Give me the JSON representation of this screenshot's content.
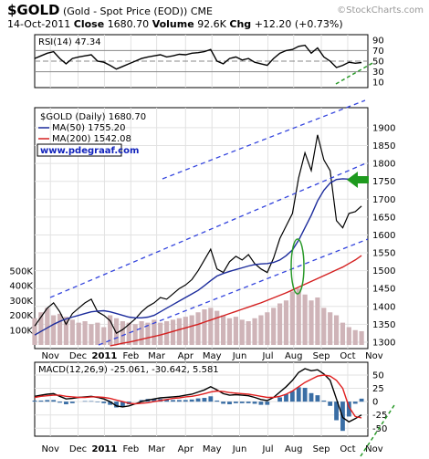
{
  "header": {
    "symbol": "$GOLD",
    "name": "(Gold - Spot Price (EOD))",
    "exchange": "CME",
    "watermark": "©StockCharts.com",
    "date": "14-Oct-2011",
    "close_label": "Close",
    "close": "1680.70",
    "volume_label": "Volume",
    "volume": "92.6K",
    "chg_label": "Chg",
    "chg": "+12.20 (+0.73%)"
  },
  "chart_data": [
    {
      "type": "line",
      "title": "RSI(14) 47.34",
      "xlim": [
        0,
        53
      ],
      "ylim": [
        0,
        100
      ],
      "yticks": [
        10,
        30,
        50,
        70,
        90
      ],
      "reference_lines": [
        30,
        50,
        70
      ],
      "series": [
        {
          "color": "#000000",
          "values": [
            55,
            60,
            65,
            68,
            55,
            45,
            55,
            58,
            60,
            62,
            50,
            48,
            42,
            35,
            40,
            45,
            50,
            55,
            58,
            60,
            62,
            58,
            60,
            63,
            62,
            65,
            66,
            68,
            72,
            50,
            45,
            55,
            58,
            52,
            55,
            48,
            45,
            42,
            55,
            65,
            70,
            72,
            78,
            80,
            65,
            75,
            58,
            50,
            38,
            42,
            48,
            46,
            47.34
          ]
        }
      ]
    },
    {
      "type": "line",
      "xlim": [
        0,
        53
      ],
      "ylim": [
        1282,
        1956
      ],
      "yticks": [
        1300,
        1350,
        1400,
        1450,
        1500,
        1550,
        1600,
        1650,
        1700,
        1750,
        1800,
        1850,
        1900
      ],
      "grid": true,
      "xticks": [
        {
          "value": 2.5,
          "label": "Nov"
        },
        {
          "value": 6.9,
          "label": "Dec"
        },
        {
          "value": 11.1,
          "label": "2011"
        },
        {
          "value": 15.3,
          "label": "Feb"
        },
        {
          "value": 19.4,
          "label": "Mar"
        },
        {
          "value": 24,
          "label": "Apr"
        },
        {
          "value": 28.2,
          "label": "May"
        },
        {
          "value": 32.6,
          "label": "Jun"
        },
        {
          "value": 37.1,
          "label": "Jul"
        },
        {
          "value": 41.2,
          "label": "Aug"
        },
        {
          "value": 45.6,
          "label": "Sep"
        },
        {
          "value": 49.8,
          "label": "Oct"
        },
        {
          "value": 54,
          "label": "Nov"
        }
      ],
      "website": "www.pdegraaf.com",
      "series": [
        {
          "name": "$GOLD (Daily) 1680.70",
          "color": "#000000",
          "values": [
            1345,
            1370,
            1395,
            1410,
            1385,
            1350,
            1380,
            1395,
            1410,
            1420,
            1385,
            1375,
            1360,
            1325,
            1335,
            1350,
            1365,
            1385,
            1400,
            1410,
            1425,
            1420,
            1435,
            1450,
            1460,
            1475,
            1500,
            1530,
            1560,
            1505,
            1495,
            1525,
            1540,
            1530,
            1545,
            1520,
            1505,
            1495,
            1535,
            1590,
            1625,
            1660,
            1760,
            1830,
            1780,
            1880,
            1810,
            1780,
            1640,
            1620,
            1660,
            1665,
            1680.7
          ]
        },
        {
          "name": "MA(50) 1755.20",
          "color": "#1c2c9c",
          "values": [
            1320,
            1330,
            1340,
            1350,
            1358,
            1365,
            1370,
            1375,
            1380,
            1385,
            1387,
            1388,
            1385,
            1380,
            1375,
            1370,
            1368,
            1368,
            1370,
            1375,
            1385,
            1395,
            1405,
            1415,
            1425,
            1435,
            1445,
            1458,
            1472,
            1485,
            1492,
            1498,
            1503,
            1508,
            1513,
            1517,
            1519,
            1520,
            1523,
            1530,
            1542,
            1558,
            1585,
            1620,
            1655,
            1695,
            1725,
            1745,
            1755,
            1757,
            1756,
            1755,
            1755.2
          ]
        },
        {
          "name": "MA(200) 1542.08",
          "color": "#d42020",
          "values": [
            null,
            null,
            null,
            null,
            null,
            null,
            null,
            null,
            null,
            null,
            null,
            null,
            1290,
            1293,
            1297,
            1300,
            1304,
            1308,
            1312,
            1316,
            1320,
            1325,
            1330,
            1335,
            1340,
            1345,
            1350,
            1356,
            1362,
            1368,
            1374,
            1380,
            1386,
            1392,
            1398,
            1404,
            1410,
            1417,
            1424,
            1431,
            1438,
            1446,
            1454,
            1462,
            1470,
            1478,
            1486,
            1494,
            1502,
            1510,
            1520,
            1530,
            1542.08
          ]
        }
      ],
      "volume": {
        "color": "#cfb4b8",
        "ylim": [
          0,
          1600000
        ],
        "yticks": [
          {
            "value": 100000,
            "label": "100K"
          },
          {
            "value": 200000,
            "label": "200K"
          },
          {
            "value": 300000,
            "label": "300K"
          },
          {
            "value": 400000,
            "label": "400K"
          },
          {
            "value": 500000,
            "label": "500K"
          }
        ],
        "values": [
          180000,
          220000,
          250000,
          200000,
          210000,
          190000,
          170000,
          150000,
          160000,
          140000,
          150000,
          120000,
          200000,
          180000,
          160000,
          150000,
          140000,
          160000,
          150000,
          170000,
          150000,
          160000,
          170000,
          180000,
          190000,
          200000,
          220000,
          240000,
          250000,
          230000,
          200000,
          180000,
          190000,
          170000,
          160000,
          180000,
          200000,
          220000,
          250000,
          280000,
          300000,
          360000,
          380000,
          340000,
          300000,
          320000,
          250000,
          220000,
          200000,
          150000,
          120000,
          100000,
          92600
        ]
      }
    },
    {
      "type": "line",
      "title": "MACD(12,26,9) -25.061, -30.642, 5.581",
      "xlim": [
        0,
        53
      ],
      "ylim": [
        -65,
        74
      ],
      "yticks": [
        -50,
        -25,
        0,
        25,
        50
      ],
      "series": [
        {
          "color": "#000000",
          "values": [
            10,
            12,
            14,
            15,
            10,
            5,
            6,
            8,
            9,
            10,
            8,
            5,
            0,
            -8,
            -10,
            -8,
            -4,
            0,
            3,
            5,
            7,
            8,
            9,
            10,
            12,
            14,
            18,
            22,
            28,
            22,
            15,
            12,
            13,
            12,
            11,
            8,
            4,
            2,
            8,
            18,
            28,
            40,
            55,
            62,
            58,
            60,
            52,
            40,
            5,
            -30,
            -38,
            -32,
            -25.061
          ]
        },
        {
          "color": "#e02020",
          "values": [
            8,
            10,
            11,
            12,
            12,
            10,
            9,
            8,
            8,
            9,
            9,
            8,
            6,
            3,
            0,
            -3,
            -4,
            -3,
            -2,
            0,
            2,
            4,
            6,
            7,
            9,
            10,
            12,
            15,
            18,
            20,
            19,
            17,
            16,
            15,
            14,
            12,
            10,
            8,
            8,
            10,
            14,
            20,
            28,
            36,
            42,
            48,
            50,
            48,
            40,
            25,
            -10,
            -28,
            -30.642
          ]
        }
      ],
      "histogram": {
        "color": "#3a6ea5",
        "values": [
          2,
          2,
          3,
          3,
          -2,
          -5,
          -3,
          0,
          1,
          1,
          -1,
          -3,
          -6,
          -11,
          -10,
          -5,
          0,
          3,
          5,
          5,
          5,
          4,
          3,
          3,
          3,
          4,
          6,
          7,
          10,
          2,
          -4,
          -5,
          -3,
          -3,
          -3,
          -4,
          -6,
          -6,
          0,
          8,
          14,
          20,
          27,
          26,
          16,
          12,
          2,
          -8,
          -35,
          -55,
          -28,
          -4,
          5.581
        ]
      }
    }
  ]
}
